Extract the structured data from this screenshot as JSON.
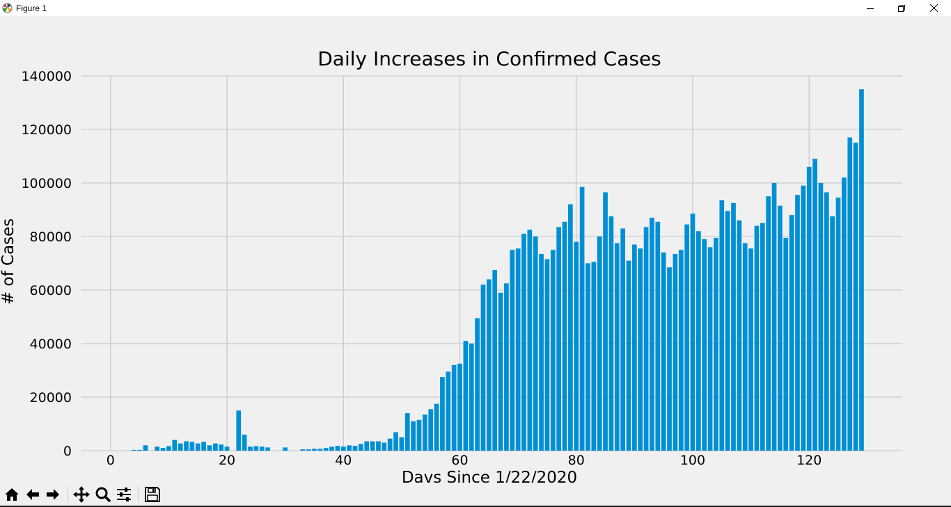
{
  "window": {
    "title": "Figure 1",
    "buttons": [
      "minimize",
      "restore",
      "close"
    ]
  },
  "toolbar": {
    "buttons": [
      {
        "name": "home-button",
        "icon": "home-icon"
      },
      {
        "name": "back-button",
        "icon": "arrow-left-icon"
      },
      {
        "name": "forward-button",
        "icon": "arrow-right-icon"
      },
      {
        "name": "pan-button",
        "icon": "move-icon"
      },
      {
        "name": "zoom-button",
        "icon": "magnifier-icon"
      },
      {
        "name": "configure-subplots-button",
        "icon": "sliders-icon"
      },
      {
        "name": "save-button",
        "icon": "floppy-disk-icon"
      }
    ]
  },
  "chart_data": {
    "type": "bar",
    "title": "Daily Increases in Confirmed Cases",
    "xlabel": "Davs Since 1/22/2020",
    "ylabel": "# of Cases",
    "xlim": [
      -5,
      136
    ],
    "ylim": [
      0,
      140000
    ],
    "xticks": [
      0,
      20,
      40,
      60,
      80,
      100,
      120
    ],
    "yticks": [
      0,
      20000,
      40000,
      60000,
      80000,
      100000,
      120000,
      140000
    ],
    "grid": true,
    "bar_color": "#008fd5",
    "x_start": 0,
    "values": [
      0,
      0,
      0,
      0,
      300,
      300,
      2000,
      0,
      1500,
      1000,
      1700,
      4000,
      2700,
      3500,
      3300,
      2700,
      3300,
      2000,
      2700,
      2300,
      1500,
      0,
      15000,
      6000,
      1500,
      1700,
      1500,
      1200,
      0,
      0,
      1200,
      0,
      0,
      500,
      500,
      700,
      700,
      1000,
      1500,
      1800,
      1500,
      2000,
      1800,
      2500,
      3500,
      3500,
      3500,
      3000,
      4500,
      6900,
      5000,
      14000,
      11000,
      11500,
      13500,
      15500,
      17500,
      27500,
      29500,
      32000,
      32500,
      41000,
      40000,
      49500,
      62000,
      64000,
      67500,
      59000,
      62500,
      75000,
      75500,
      81000,
      82500,
      80000,
      73500,
      71500,
      75000,
      83500,
      85500,
      92000,
      78000,
      98500,
      70000,
      70500,
      80000,
      96500,
      87500,
      77500,
      83000,
      71000,
      77000,
      75500,
      83500,
      87000,
      85500,
      74000,
      68500,
      73500,
      75000,
      84500,
      88500,
      82000,
      79000,
      76000,
      79500,
      93500,
      89500,
      92500,
      86000,
      77500,
      75500,
      84000,
      85000,
      95000,
      100000,
      91500,
      79500,
      88000,
      95500,
      99000,
      106000,
      109000,
      100000,
      96500,
      87500,
      94500,
      102000,
      117000,
      115000,
      135000
    ]
  }
}
